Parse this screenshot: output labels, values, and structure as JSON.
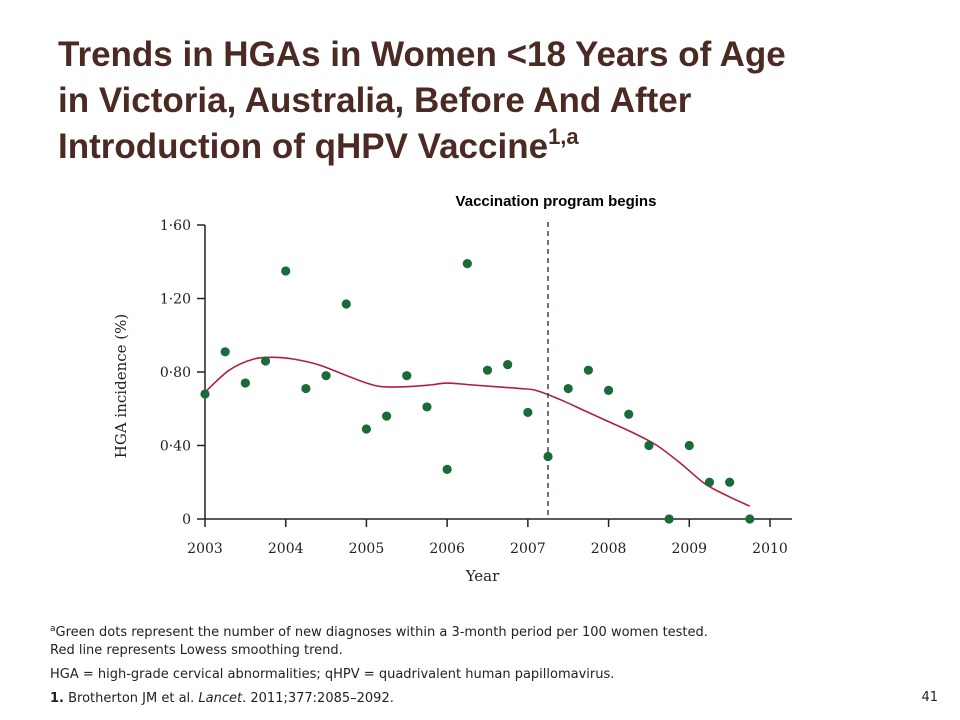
{
  "slide": {
    "title_lines": [
      "Trends in HGAs in Women <18 Years of Age",
      "in Victoria, Australia, Before And After",
      "Introduction of qHPV Vaccine"
    ],
    "title_superscript": "1,a",
    "slide_number": "41",
    "colors": {
      "title": "#4a2a22",
      "dots": "#1a6b3a",
      "trend_line": "#b0203c"
    }
  },
  "footnotes": {
    "note_marker": "a",
    "note_line1": "Green dots represent the number of new diagnoses within a 3-month period per 100 women tested.",
    "note_line2": "Red line represents Lowess smoothing trend.",
    "abbreviations": "HGA = high-grade cervical abnormalities; qHPV = quadrivalent human papillomavirus.",
    "ref_number": "1.",
    "ref_authors": "Brotherton JM et al.",
    "ref_journal": "Lancet",
    "ref_details": ". 2011;377:2085–2092."
  },
  "chart_data": {
    "type": "scatter",
    "xlabel": "Year",
    "ylabel": "HGA incidence (%)",
    "xlim": [
      2003,
      2010
    ],
    "ylim": [
      0,
      1.6
    ],
    "x_ticks": [
      2003,
      2004,
      2005,
      2006,
      2007,
      2008,
      2009,
      2010
    ],
    "x_tick_labels": [
      "2003",
      "2004",
      "2005",
      "2006",
      "2007",
      "2008",
      "2009",
      "2010"
    ],
    "y_ticks": [
      0,
      0.4,
      0.8,
      1.2,
      1.6
    ],
    "y_tick_labels": [
      "0",
      "0·40",
      "0·80",
      "1·20",
      "1·60"
    ],
    "grid": false,
    "annotation": {
      "label": "Vaccination program begins",
      "x": 2007.25
    },
    "series": [
      {
        "kind": "points",
        "x": [
          2003.0,
          2003.25,
          2003.5,
          2003.75,
          2004.0,
          2004.25,
          2004.5,
          2004.75,
          2005.0,
          2005.25,
          2005.5,
          2005.75,
          2006.0,
          2006.25,
          2006.5,
          2006.75,
          2007.0,
          2007.25,
          2007.5,
          2007.75,
          2008.0,
          2008.25,
          2008.5,
          2008.75,
          2009.0,
          2009.25,
          2009.5,
          2009.75
        ],
        "y": [
          0.68,
          0.91,
          0.74,
          0.86,
          1.35,
          0.71,
          0.78,
          1.17,
          0.49,
          0.56,
          0.78,
          0.61,
          0.27,
          1.39,
          0.81,
          0.84,
          0.58,
          0.34,
          0.71,
          0.81,
          0.7,
          0.57,
          0.4,
          0.0,
          0.4,
          0.2,
          0.2,
          0.0
        ]
      },
      {
        "kind": "line",
        "x": [
          2003.0,
          2003.3,
          2003.6,
          2003.85,
          2004.1,
          2004.4,
          2004.7,
          2005.0,
          2005.2,
          2005.5,
          2005.8,
          2006.0,
          2006.3,
          2006.6,
          2006.9,
          2007.1,
          2007.4,
          2007.7,
          2008.0,
          2008.3,
          2008.6,
          2008.9,
          2009.2,
          2009.5,
          2009.75
        ],
        "y": [
          0.69,
          0.81,
          0.87,
          0.88,
          0.87,
          0.84,
          0.79,
          0.74,
          0.72,
          0.72,
          0.73,
          0.74,
          0.73,
          0.72,
          0.71,
          0.7,
          0.65,
          0.59,
          0.53,
          0.47,
          0.4,
          0.3,
          0.19,
          0.12,
          0.07
        ]
      }
    ]
  }
}
